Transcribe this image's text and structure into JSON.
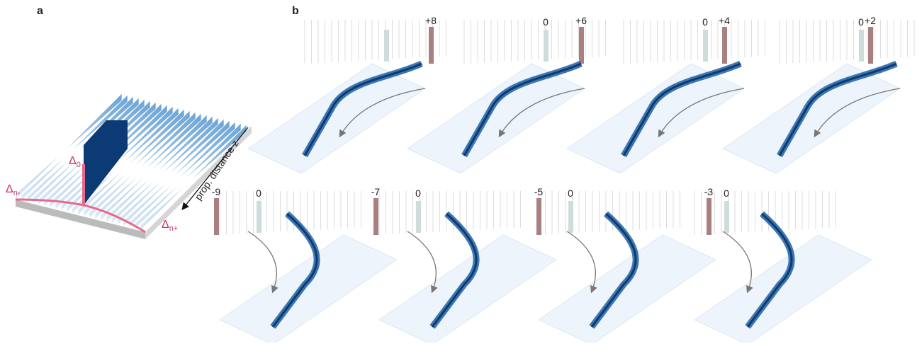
{
  "panel_a": {
    "label": "a",
    "delta_0": {
      "base": "Δ",
      "sub": "0"
    },
    "delta_minus": {
      "base": "Δ",
      "sub": "n-"
    },
    "delta_plus": {
      "base": "Δ",
      "sub": "n+"
    },
    "axis_label": "prop. distance z"
  },
  "panel_b": {
    "label": "b",
    "plots": [
      {
        "shift_label": "+8"
      },
      {
        "zero_label": "0",
        "shift_label": "+6"
      },
      {
        "zero_label": "0",
        "shift_label": "+4"
      },
      {
        "zero_label": "0",
        "shift_label": "+2"
      },
      {
        "shift_label": "-9",
        "zero_label": "0"
      },
      {
        "shift_label": "-7",
        "zero_label": "0"
      },
      {
        "shift_label": "-5",
        "zero_label": "0"
      },
      {
        "shift_label": "-3",
        "zero_label": "0"
      }
    ]
  }
}
